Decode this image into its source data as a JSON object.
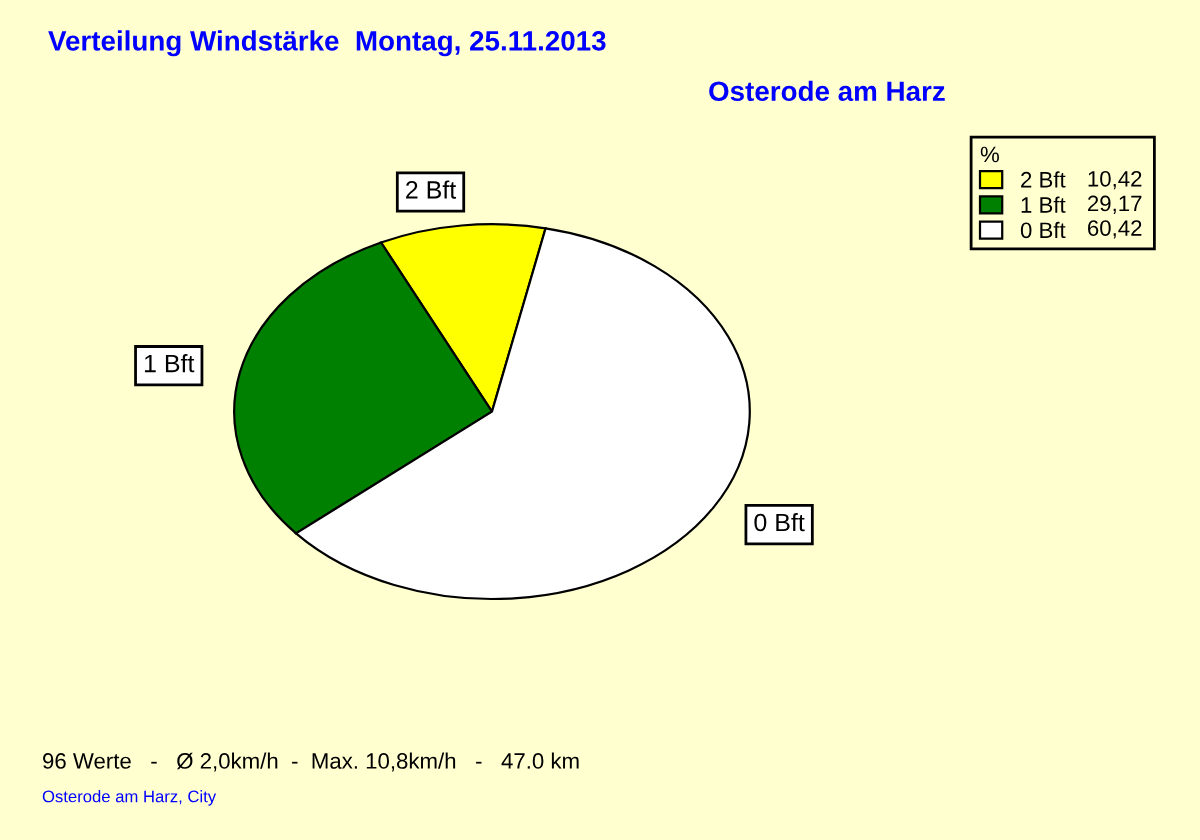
{
  "chart_data": {
    "type": "pie",
    "title": "Verteilung Windstärke  Montag, 25.11.2013",
    "subtitle": "Osterode am Harz",
    "categories": [
      "2 Bft",
      "1 Bft",
      "0 Bft"
    ],
    "values": [
      10.42,
      29.17,
      60.42
    ],
    "value_labels": [
      "10,42",
      "29,17",
      "60,42"
    ],
    "colors": [
      "#ffff00",
      "#008000",
      "#ffffff"
    ],
    "legend_title": "%",
    "legend": "top right",
    "annotations": [
      "96 Werte   -   Ø 2,0km/h  -  Max. 10,8km/h   -   47.0 km",
      "Osterode am Harz, City"
    ]
  }
}
